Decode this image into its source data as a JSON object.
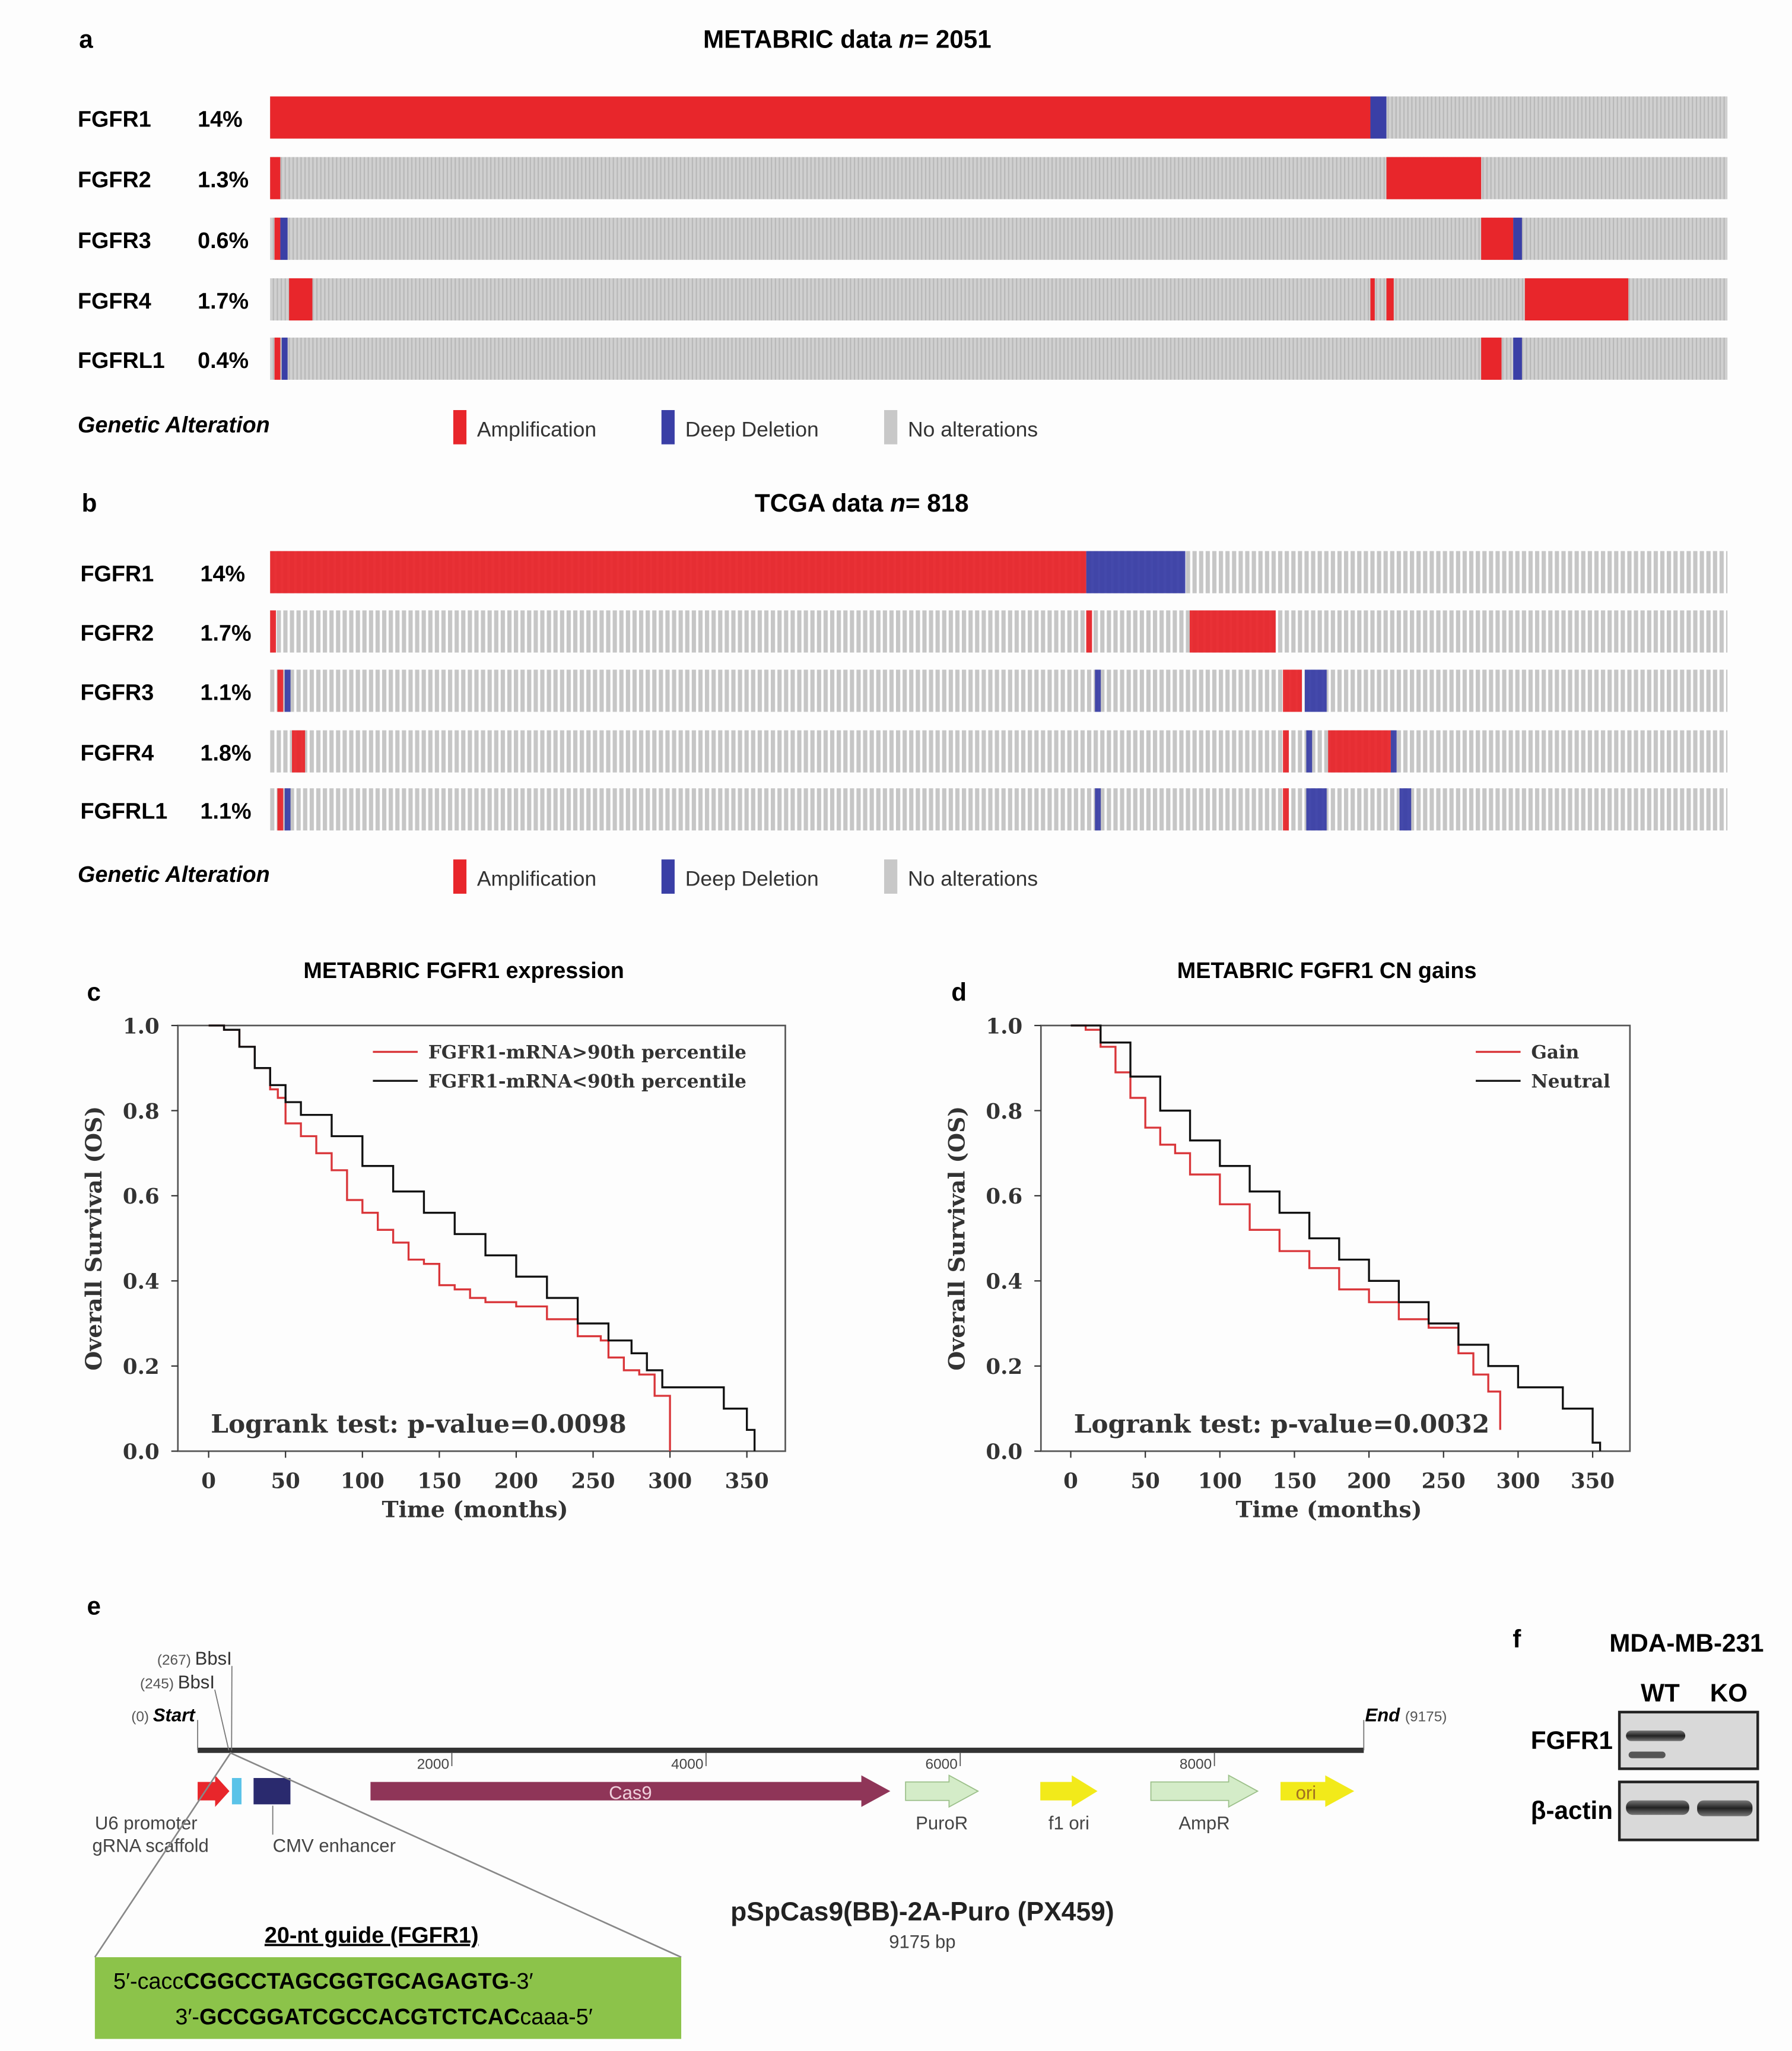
{
  "colors": {
    "amp": "#e8262b",
    "del": "#3a3fa6",
    "none": "#c8c8c8",
    "km_high": "#d9363a",
    "km_low": "#111111",
    "guide_box": "#8cc34a"
  },
  "panel_a": {
    "label": "a",
    "title_prefix": "METABRIC data ",
    "title_n": "n",
    "title_suffix": "= 2051",
    "rows": [
      {
        "gene": "FGFR1",
        "pct": "14%",
        "segments": [
          [
            "amp",
            0,
            0.755
          ],
          [
            "del",
            0.755,
            0.766
          ]
        ]
      },
      {
        "gene": "FGFR2",
        "pct": "1.3%",
        "segments": [
          [
            "amp",
            0,
            0.007
          ],
          [
            "amp",
            0.766,
            0.831
          ]
        ]
      },
      {
        "gene": "FGFR3",
        "pct": "0.6%",
        "segments": [
          [
            "amp",
            0.003,
            0.007
          ],
          [
            "del",
            0.007,
            0.012
          ],
          [
            "amp",
            0.831,
            0.853
          ],
          [
            "del",
            0.853,
            0.859
          ]
        ]
      },
      {
        "gene": "FGFR4",
        "pct": "1.7%",
        "segments": [
          [
            "amp",
            0.013,
            0.029
          ],
          [
            "amp",
            0.755,
            0.758
          ],
          [
            "amp",
            0.766,
            0.771
          ],
          [
            "amp",
            0.861,
            0.932
          ]
        ]
      },
      {
        "gene": "FGFRL1",
        "pct": "0.4%",
        "segments": [
          [
            "amp",
            0.003,
            0.007
          ],
          [
            "del",
            0.008,
            0.012
          ],
          [
            "amp",
            0.831,
            0.845
          ],
          [
            "del",
            0.853,
            0.859
          ]
        ]
      }
    ],
    "legend_title": "Genetic Alteration",
    "legend": [
      {
        "key": "amp",
        "label": "Amplification"
      },
      {
        "key": "del",
        "label": "Deep Deletion"
      },
      {
        "key": "none",
        "label": "No alterations"
      }
    ]
  },
  "panel_b": {
    "label": "b",
    "title_prefix": "TCGA data ",
    "title_n": "n",
    "title_suffix": "= 818",
    "rows": [
      {
        "gene": "FGFR1",
        "pct": "14%",
        "segments": [
          [
            "amp",
            0,
            0.56
          ],
          [
            "del",
            0.56,
            0.628
          ]
        ]
      },
      {
        "gene": "FGFR2",
        "pct": "1.7%",
        "segments": [
          [
            "amp",
            0,
            0.004
          ],
          [
            "amp",
            0.56,
            0.564
          ],
          [
            "amp",
            0.631,
            0.69
          ]
        ]
      },
      {
        "gene": "FGFR3",
        "pct": "1.1%",
        "segments": [
          [
            "amp",
            0.005,
            0.009
          ],
          [
            "del",
            0.01,
            0.014
          ],
          [
            "del",
            0.566,
            0.57
          ],
          [
            "amp",
            0.695,
            0.708
          ],
          [
            "del",
            0.71,
            0.725
          ]
        ]
      },
      {
        "gene": "FGFR4",
        "pct": "1.8%",
        "segments": [
          [
            "amp",
            0.015,
            0.024
          ],
          [
            "amp",
            0.695,
            0.699
          ],
          [
            "del",
            0.711,
            0.715
          ],
          [
            "amp",
            0.726,
            0.769
          ],
          [
            "del",
            0.769,
            0.773
          ]
        ]
      },
      {
        "gene": "FGFRL1",
        "pct": "1.1%",
        "segments": [
          [
            "amp",
            0.005,
            0.009
          ],
          [
            "del",
            0.01,
            0.014
          ],
          [
            "del",
            0.566,
            0.57
          ],
          [
            "amp",
            0.695,
            0.699
          ],
          [
            "del",
            0.711,
            0.725
          ],
          [
            "del",
            0.775,
            0.783
          ]
        ]
      }
    ],
    "legend_title": "Genetic Alteration",
    "legend": [
      {
        "key": "amp",
        "label": "Amplification"
      },
      {
        "key": "del",
        "label": "Deep Deletion"
      },
      {
        "key": "none",
        "label": "No alterations"
      }
    ]
  },
  "chart_data": [
    {
      "type": "line",
      "panel": "c",
      "title": "METABRIC FGFR1 expression",
      "xlabel": "Time (months)",
      "ylabel": "Overall Survival (OS)",
      "xlim": [
        -20,
        375
      ],
      "ylim": [
        0,
        1
      ],
      "xticks": [
        "0",
        "50",
        "100",
        "150",
        "200",
        "250",
        "300",
        "350"
      ],
      "yticks": [
        "0.0",
        "0.2",
        "0.4",
        "0.6",
        "0.8",
        "1.0"
      ],
      "legend_position": "top-right",
      "annotation": "Logrank test: p-value=0.0098",
      "series": [
        {
          "name": "FGFR1-mRNA>90th percentile",
          "color": "km_high",
          "x": [
            0,
            10,
            20,
            30,
            40,
            45,
            50,
            60,
            70,
            80,
            90,
            100,
            110,
            120,
            130,
            140,
            150,
            160,
            170,
            180,
            200,
            220,
            240,
            255,
            260,
            270,
            280,
            290,
            300
          ],
          "y": [
            1,
            0.99,
            0.95,
            0.9,
            0.85,
            0.83,
            0.77,
            0.74,
            0.7,
            0.66,
            0.59,
            0.56,
            0.52,
            0.49,
            0.45,
            0.44,
            0.39,
            0.38,
            0.36,
            0.35,
            0.34,
            0.31,
            0.27,
            0.26,
            0.22,
            0.19,
            0.18,
            0.13,
            0
          ]
        },
        {
          "name": "FGFR1-mRNA<90th percentile",
          "color": "km_low",
          "x": [
            0,
            10,
            20,
            30,
            40,
            50,
            60,
            80,
            100,
            120,
            140,
            160,
            180,
            200,
            220,
            240,
            260,
            275,
            285,
            295,
            330,
            335,
            350,
            355
          ],
          "y": [
            1,
            0.99,
            0.95,
            0.9,
            0.86,
            0.82,
            0.79,
            0.74,
            0.67,
            0.61,
            0.56,
            0.51,
            0.46,
            0.41,
            0.36,
            0.3,
            0.26,
            0.23,
            0.19,
            0.15,
            0.15,
            0.1,
            0.05,
            0
          ]
        }
      ]
    },
    {
      "type": "line",
      "panel": "d",
      "title": "METABRIC FGFR1 CN gains",
      "xlabel": "Time (months)",
      "ylabel": "Overall Survival (OS)",
      "xlim": [
        -20,
        375
      ],
      "ylim": [
        0,
        1
      ],
      "xticks": [
        "0",
        "50",
        "100",
        "150",
        "200",
        "250",
        "300",
        "350"
      ],
      "yticks": [
        "0.0",
        "0.2",
        "0.4",
        "0.6",
        "0.8",
        "1.0"
      ],
      "legend_position": "top-right",
      "annotation": "Logrank test: p-value=0.0032",
      "series": [
        {
          "name": "Gain",
          "color": "km_high",
          "x": [
            0,
            10,
            20,
            30,
            40,
            50,
            60,
            70,
            80,
            100,
            120,
            140,
            160,
            180,
            200,
            220,
            240,
            260,
            270,
            280,
            288
          ],
          "y": [
            1,
            0.99,
            0.95,
            0.89,
            0.83,
            0.76,
            0.72,
            0.7,
            0.65,
            0.58,
            0.52,
            0.47,
            0.43,
            0.38,
            0.35,
            0.31,
            0.29,
            0.23,
            0.18,
            0.14,
            0.05
          ]
        },
        {
          "name": "Neutral",
          "color": "km_low",
          "x": [
            0,
            20,
            40,
            60,
            80,
            100,
            120,
            140,
            160,
            180,
            200,
            220,
            240,
            260,
            280,
            300,
            320,
            330,
            350,
            355
          ],
          "y": [
            1,
            0.96,
            0.88,
            0.8,
            0.73,
            0.67,
            0.61,
            0.56,
            0.5,
            0.45,
            0.4,
            0.35,
            0.3,
            0.25,
            0.2,
            0.15,
            0.15,
            0.1,
            0.02,
            0
          ]
        }
      ]
    }
  ],
  "panel_e": {
    "label": "e",
    "plasmid_name": "pSpCas9(BB)-2A-Puro (PX459)",
    "plasmid_size": "9175 bp",
    "length_bp": 9175,
    "start_label": "Start",
    "start_pos": "(0)",
    "end_label": "End",
    "end_pos": "(9175)",
    "sites": [
      {
        "pos": "(267)",
        "name": "BbsI"
      },
      {
        "pos": "(245)",
        "name": "BbsI"
      }
    ],
    "ticks": [
      "2000",
      "4000",
      "6000",
      "8000"
    ],
    "features": [
      {
        "name": "U6 promoter",
        "start": 0,
        "end": 250,
        "color": "#e8262b",
        "arrow": true
      },
      {
        "name": "gRNA scaffold",
        "start": 270,
        "end": 345,
        "color": "#5bc3e8",
        "arrow": false
      },
      {
        "name": "CMV enhancer",
        "start": 440,
        "end": 730,
        "color": "#2a2a6e",
        "arrow": false
      },
      {
        "name": "Cas9",
        "start": 1360,
        "end": 5450,
        "color": "#8f3558",
        "arrow": true
      },
      {
        "name": "PuroR",
        "start": 5570,
        "end": 6140,
        "color": "#d4ecc8",
        "arrow": true
      },
      {
        "name": "f1 ori",
        "start": 6630,
        "end": 7080,
        "color": "#f2ea1a",
        "arrow": true
      },
      {
        "name": "AmpR",
        "start": 7500,
        "end": 8340,
        "color": "#d4ecc8",
        "arrow": true
      },
      {
        "name": "ori",
        "start": 8520,
        "end": 9100,
        "color": "#f2ea1a",
        "arrow": true
      }
    ],
    "guide_title": "20-nt guide (FGFR1)",
    "guide_top": {
      "prefix": "5′-cacc",
      "seq": "CGGCCTAGCGGTGCAGAGTG",
      "suffix": "-3′"
    },
    "guide_bottom": {
      "prefix": "3′-",
      "seq": "GCCGGATCGCCACGTCTCAC",
      "suffix": "caaa-5′"
    }
  },
  "panel_f": {
    "label": "f",
    "cell_line": "MDA-MB-231",
    "lanes": [
      "WT",
      "KO"
    ],
    "blots": [
      {
        "protein": "FGFR1"
      },
      {
        "protein": "β-actin"
      }
    ]
  }
}
